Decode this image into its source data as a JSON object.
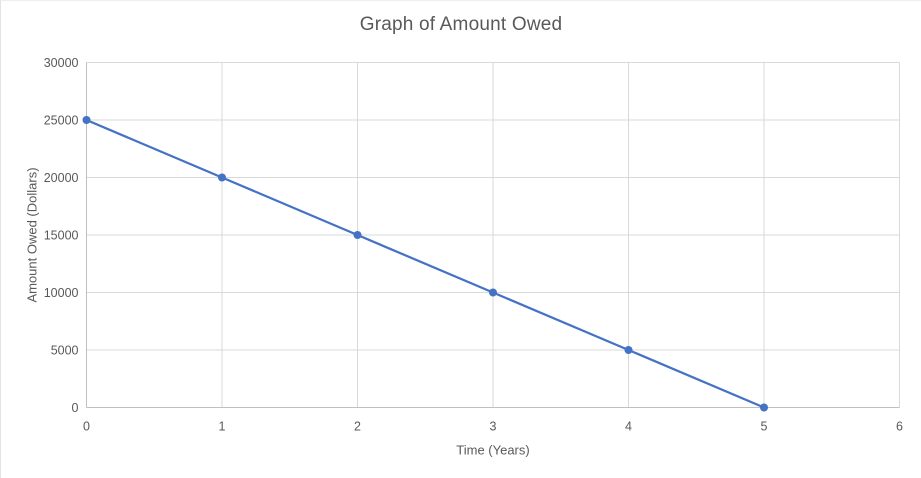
{
  "chart_data": {
    "type": "line",
    "title": "Graph of Amount Owed",
    "xlabel": "Time (Years)",
    "ylabel": "Amount Owed (Dollars)",
    "x": [
      0,
      1,
      2,
      3,
      4,
      5
    ],
    "y": [
      25000,
      20000,
      15000,
      10000,
      5000,
      0
    ],
    "xlim": [
      0,
      6
    ],
    "ylim": [
      0,
      30000
    ],
    "x_ticks": [
      0,
      1,
      2,
      3,
      4,
      5,
      6
    ],
    "y_ticks": [
      0,
      5000,
      10000,
      15000,
      20000,
      25000,
      30000
    ],
    "grid": true,
    "legend": "none",
    "marker": "circle",
    "colors": {
      "line": "#4472C4",
      "marker": "#4472C4",
      "gridline": "#D9D9D9",
      "axis_line": "#BFBFBF",
      "text": "#595959",
      "background": "#FFFFFF"
    }
  }
}
